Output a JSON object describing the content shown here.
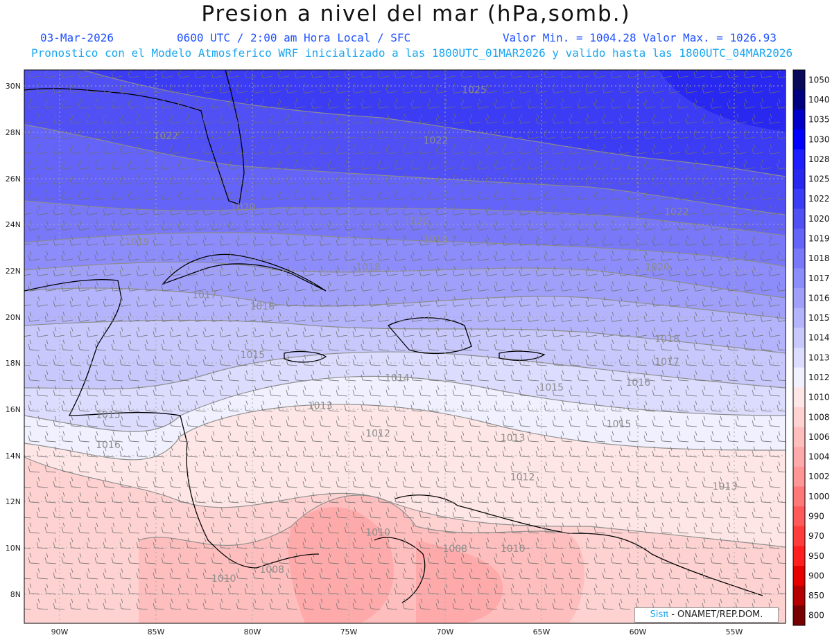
{
  "title": "Presion a nivel del mar (hPa,somb.)",
  "header": {
    "date": "03-Mar-2026",
    "time": "0600 UTC / 2:00 am Hora Local / SFC",
    "minmax": "Valor Min. = 1004.28  Valor Max. = 1026.93",
    "forecast": "Pronostico con el Modelo Atmosferico WRF inicializado a las 1800UTC_01MAR2026 y valido hasta las  1800UTC_04MAR2026"
  },
  "map": {
    "lat_ticks": [
      "30N",
      "28N",
      "26N",
      "24N",
      "22N",
      "20N",
      "18N",
      "16N",
      "14N",
      "12N",
      "10N",
      "8N"
    ],
    "lon_ticks": [
      "90W",
      "85W",
      "80W",
      "75W",
      "70W",
      "65W",
      "60W",
      "55W"
    ],
    "contour_labels": [
      {
        "text": "1025",
        "lon": -68.5,
        "lat": 29.7
      },
      {
        "text": "1022",
        "lon": -84.5,
        "lat": 27.7
      },
      {
        "text": "1022",
        "lon": -70.5,
        "lat": 27.5
      },
      {
        "text": "1022",
        "lon": -58,
        "lat": 24.4
      },
      {
        "text": "1020",
        "lon": -80.5,
        "lat": 24.6
      },
      {
        "text": "1020",
        "lon": -71.5,
        "lat": 24.0
      },
      {
        "text": "1020",
        "lon": -59,
        "lat": 22.0
      },
      {
        "text": "1019",
        "lon": -86,
        "lat": 23.1
      },
      {
        "text": "1019",
        "lon": -70.5,
        "lat": 23.2
      },
      {
        "text": "1018",
        "lon": -74,
        "lat": 22.0
      },
      {
        "text": "1018",
        "lon": -58.5,
        "lat": 18.9
      },
      {
        "text": "1017",
        "lon": -82.5,
        "lat": 20.8
      },
      {
        "text": "1017",
        "lon": -58.5,
        "lat": 17.9
      },
      {
        "text": "1016",
        "lon": -79.5,
        "lat": 20.3
      },
      {
        "text": "1016",
        "lon": -60,
        "lat": 17.0
      },
      {
        "text": "1016",
        "lon": -87.5,
        "lat": 14.3
      },
      {
        "text": "1015",
        "lon": -80,
        "lat": 18.2
      },
      {
        "text": "1015",
        "lon": -64.5,
        "lat": 16.8
      },
      {
        "text": "1015",
        "lon": -61,
        "lat": 15.2
      },
      {
        "text": "1015",
        "lon": -87.5,
        "lat": 15.6
      },
      {
        "text": "1014",
        "lon": -72.5,
        "lat": 17.2
      },
      {
        "text": "1013",
        "lon": -76.5,
        "lat": 16.0
      },
      {
        "text": "1013",
        "lon": -66.5,
        "lat": 14.6
      },
      {
        "text": "1013",
        "lon": -55.5,
        "lat": 12.5
      },
      {
        "text": "1012",
        "lon": -73.5,
        "lat": 14.8
      },
      {
        "text": "1012",
        "lon": -66,
        "lat": 12.9
      },
      {
        "text": "1010",
        "lon": -73.5,
        "lat": 10.5
      },
      {
        "text": "1010",
        "lon": -66.5,
        "lat": 9.8
      },
      {
        "text": "1010",
        "lon": -81.5,
        "lat": 8.5
      },
      {
        "text": "1008",
        "lon": -69.5,
        "lat": 9.8
      },
      {
        "text": "1008",
        "lon": -79,
        "lat": 8.9
      }
    ]
  },
  "colorbar": {
    "levels": [
      "1050",
      "1040",
      "1035",
      "1030",
      "1028",
      "1025",
      "1022",
      "1020",
      "1019",
      "1018",
      "1017",
      "1016",
      "1015",
      "1014",
      "1013",
      "1012",
      "1010",
      "1008",
      "1006",
      "1004",
      "1002",
      "1000",
      "990",
      "970",
      "950",
      "900",
      "850",
      "800"
    ],
    "colors": [
      "#0a0a5a",
      "#000080",
      "#0000c8",
      "#0000ff",
      "#1e1eff",
      "#2828f0",
      "#3c3cf5",
      "#5050f5",
      "#6464f8",
      "#7878f8",
      "#8c8cfa",
      "#a0a0fa",
      "#b4b4fc",
      "#c8c8fc",
      "#dcdcfe",
      "#f0f0ff",
      "#ffe6e6",
      "#ffd2d2",
      "#ffbebe",
      "#ffaaaa",
      "#ff9696",
      "#ff7878",
      "#ff5a5a",
      "#ff3c3c",
      "#ff1e1e",
      "#e60000",
      "#b40000",
      "#780000"
    ]
  },
  "credit": {
    "brand": "Sisπ",
    "text": " - ONAMET/REP.DOM."
  }
}
